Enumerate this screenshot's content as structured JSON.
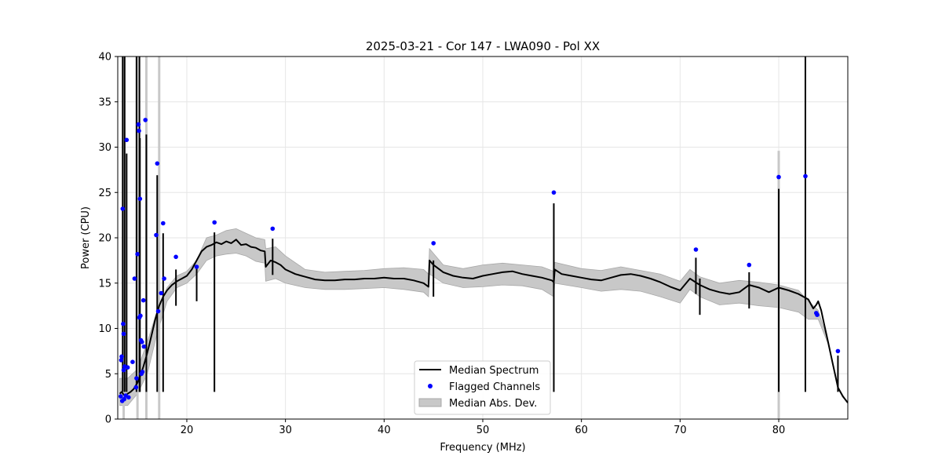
{
  "chart_data": {
    "type": "line",
    "title": "2025-03-21 - Cor 147 - LWA090 - Pol XX",
    "xlabel": "Frequency (MHz)",
    "ylabel": "Power (CPU)",
    "xlim": [
      13.0,
      87.0
    ],
    "ylim": [
      0,
      40
    ],
    "x_ticks": [
      20,
      30,
      40,
      50,
      60,
      70,
      80
    ],
    "x_tick_labels": [
      "20",
      "30",
      "40",
      "50",
      "60",
      "70",
      "80"
    ],
    "y_ticks": [
      0,
      5,
      10,
      15,
      20,
      25,
      30,
      35,
      40
    ],
    "y_tick_labels": [
      "0",
      "5",
      "10",
      "15",
      "20",
      "25",
      "30",
      "35",
      "40"
    ],
    "grid": true,
    "legend_position": "bottom-center",
    "colors": {
      "median": "#000000",
      "flagged": "#0000ff",
      "mad": "#c8c8c8",
      "mad_edge": "#a8a8a8"
    },
    "legend": [
      {
        "label": "Median Spectrum",
        "style": "line"
      },
      {
        "label": "Flagged Channels",
        "style": "marker"
      },
      {
        "label": "Median Abs. Dev.",
        "style": "patch"
      }
    ],
    "series": [
      {
        "name": "Median Spectrum",
        "x": [
          13.2,
          13.4,
          13.6,
          13.8,
          14.0,
          14.3,
          14.6,
          15.0,
          15.3,
          15.6,
          15.9,
          16.2,
          16.5,
          16.8,
          17.2,
          17.6,
          18.0,
          18.5,
          19.0,
          19.5,
          20.0,
          20.5,
          21.0,
          21.5,
          22.0,
          22.5,
          23.0,
          23.5,
          24.0,
          24.5,
          25.0,
          25.5,
          26.0,
          26.5,
          27.0,
          27.5,
          27.9,
          28.0,
          28.5,
          29.0,
          29.5,
          30.0,
          31.0,
          32.0,
          33.0,
          34.0,
          35.0,
          36.0,
          37.0,
          38.0,
          39.0,
          40.0,
          41.0,
          42.0,
          43.0,
          44.0,
          44.5,
          44.6,
          45.0,
          46.0,
          47.0,
          48.0,
          49.0,
          50.0,
          51.0,
          52.0,
          53.0,
          54.0,
          55.0,
          56.0,
          57.0,
          57.2,
          57.3,
          58.0,
          59.0,
          60.0,
          61.0,
          62.0,
          63.0,
          64.0,
          65.0,
          66.0,
          67.0,
          68.0,
          69.0,
          70.0,
          71.0,
          72.0,
          73.0,
          74.0,
          75.0,
          76.0,
          77.0,
          78.0,
          79.0,
          80.0,
          81.0,
          82.0,
          83.0,
          83.5,
          83.8,
          84.0,
          84.3,
          84.6,
          85.0,
          85.5,
          85.8,
          86.0,
          86.5,
          87.0
        ],
        "y": [
          2.8,
          3.0,
          2.7,
          2.6,
          2.8,
          3.0,
          3.3,
          4.0,
          4.8,
          5.8,
          6.9,
          8.2,
          9.6,
          11.0,
          12.5,
          13.5,
          14.2,
          14.8,
          15.2,
          15.5,
          15.8,
          16.5,
          17.5,
          18.5,
          19.0,
          19.2,
          19.5,
          19.3,
          19.6,
          19.4,
          19.8,
          19.2,
          19.3,
          19.0,
          18.9,
          18.6,
          18.5,
          16.8,
          17.5,
          17.3,
          17.0,
          16.5,
          16.0,
          15.7,
          15.4,
          15.3,
          15.3,
          15.4,
          15.4,
          15.5,
          15.5,
          15.6,
          15.5,
          15.5,
          15.3,
          15.0,
          14.6,
          17.5,
          17.0,
          16.2,
          15.8,
          15.6,
          15.5,
          15.8,
          16.0,
          16.2,
          16.3,
          16.0,
          15.8,
          15.6,
          15.3,
          15.1,
          16.5,
          16.0,
          15.8,
          15.6,
          15.4,
          15.3,
          15.6,
          15.9,
          16.0,
          15.8,
          15.5,
          15.1,
          14.6,
          14.2,
          15.5,
          14.8,
          14.3,
          14.0,
          13.8,
          14.0,
          14.8,
          14.5,
          14.0,
          14.5,
          14.2,
          13.8,
          13.2,
          12.2,
          12.6,
          13.0,
          12.0,
          10.5,
          8.5,
          6.0,
          4.5,
          3.5,
          2.5,
          1.8
        ]
      },
      {
        "name": "Flagged Channels",
        "points": [
          [
            13.3,
            2.5
          ],
          [
            13.35,
            6.5
          ],
          [
            13.4,
            6.9
          ],
          [
            13.45,
            2.0
          ],
          [
            13.5,
            23.2
          ],
          [
            13.55,
            10.5
          ],
          [
            13.6,
            9.4
          ],
          [
            13.6,
            5.4
          ],
          [
            13.65,
            2.2
          ],
          [
            13.7,
            5.8
          ],
          [
            13.8,
            2.6
          ],
          [
            13.9,
            30.8
          ],
          [
            14.0,
            5.7
          ],
          [
            14.1,
            2.4
          ],
          [
            14.5,
            6.3
          ],
          [
            14.7,
            15.5
          ],
          [
            14.85,
            3.5
          ],
          [
            14.9,
            4.5
          ],
          [
            15.0,
            18.2
          ],
          [
            15.1,
            32.5
          ],
          [
            15.15,
            31.8
          ],
          [
            15.2,
            11.2
          ],
          [
            15.25,
            24.3
          ],
          [
            15.3,
            11.4
          ],
          [
            15.35,
            8.7
          ],
          [
            15.4,
            5.0
          ],
          [
            15.45,
            8.5
          ],
          [
            15.5,
            5.2
          ],
          [
            15.6,
            13.1
          ],
          [
            15.65,
            8.0
          ],
          [
            15.8,
            33.0
          ],
          [
            16.9,
            20.3
          ],
          [
            17.0,
            28.2
          ],
          [
            17.1,
            11.9
          ],
          [
            17.4,
            13.9
          ],
          [
            17.6,
            21.6
          ],
          [
            17.7,
            15.5
          ],
          [
            18.9,
            17.9
          ],
          [
            21.0,
            16.8
          ],
          [
            22.8,
            21.7
          ],
          [
            28.7,
            21.0
          ],
          [
            45.0,
            19.4
          ],
          [
            57.2,
            25.0
          ],
          [
            71.6,
            18.7
          ],
          [
            77.0,
            17.0
          ],
          [
            80.0,
            26.7
          ],
          [
            82.7,
            26.8
          ],
          [
            83.8,
            11.7
          ],
          [
            83.9,
            11.5
          ],
          [
            86.0,
            7.5
          ]
        ]
      },
      {
        "name": "Median Abs. Dev.",
        "x": [
          13.2,
          14.0,
          15.0,
          16.0,
          17.0,
          18.0,
          19.0,
          20.0,
          21.0,
          22.0,
          23.0,
          24.0,
          25.0,
          26.0,
          27.0,
          27.9,
          28.0,
          29.0,
          30.0,
          32.0,
          34.0,
          36.0,
          38.0,
          40.0,
          42.0,
          44.0,
          44.5,
          44.6,
          46.0,
          48.0,
          50.0,
          52.0,
          54.0,
          56.0,
          57.2,
          57.3,
          60.0,
          62.0,
          64.0,
          66.0,
          68.0,
          70.0,
          71.0,
          72.0,
          74.0,
          76.0,
          78.0,
          80.0,
          82.0,
          83.0,
          84.0,
          85.0,
          86.0,
          87.0
        ],
        "upper": [
          4.5,
          4.5,
          5.5,
          8.5,
          12.0,
          14.5,
          15.8,
          16.3,
          17.5,
          20.0,
          20.3,
          20.8,
          21.0,
          20.5,
          20.0,
          19.8,
          18.8,
          19.0,
          18.0,
          16.5,
          16.2,
          16.3,
          16.4,
          16.6,
          16.7,
          16.5,
          16.0,
          18.8,
          17.0,
          16.6,
          17.0,
          17.2,
          17.0,
          16.8,
          16.3,
          17.3,
          16.6,
          16.4,
          16.8,
          16.4,
          16.0,
          15.2,
          16.5,
          15.7,
          15.0,
          15.3,
          15.1,
          14.8,
          14.2,
          13.0,
          12.0,
          8.5,
          3.5,
          1.8
        ],
        "lower": [
          1.5,
          1.5,
          2.8,
          5.0,
          9.5,
          13.0,
          14.5,
          15.0,
          16.0,
          17.5,
          18.0,
          18.2,
          18.3,
          18.0,
          17.4,
          17.2,
          15.2,
          15.5,
          15.0,
          14.5,
          14.3,
          14.3,
          14.4,
          14.5,
          14.3,
          14.0,
          13.5,
          16.0,
          15.0,
          14.5,
          14.6,
          14.8,
          14.7,
          14.3,
          13.5,
          15.0,
          14.5,
          14.1,
          14.3,
          14.1,
          13.5,
          12.8,
          14.3,
          13.5,
          12.6,
          12.8,
          12.5,
          12.3,
          11.8,
          11.0,
          11.0,
          8.3,
          3.5,
          1.8
        ]
      }
    ],
    "spikes": [
      [
        13.5,
        40
      ],
      [
        13.7,
        40
      ],
      [
        13.9,
        29.3
      ],
      [
        14.9,
        40
      ],
      [
        15.2,
        40
      ],
      [
        15.25,
        31
      ],
      [
        15.9,
        31.4
      ],
      [
        17.0,
        26.9
      ],
      [
        17.6,
        20.5
      ],
      [
        18.9,
        16.5
      ],
      [
        21.0,
        17
      ],
      [
        22.8,
        20.6
      ],
      [
        28.7,
        19.9
      ],
      [
        45.0,
        17.5
      ],
      [
        57.2,
        23.8
      ],
      [
        71.6,
        17.8
      ],
      [
        72.0,
        15.5
      ],
      [
        77.0,
        16.2
      ],
      [
        80.0,
        25.4
      ],
      [
        82.7,
        40
      ],
      [
        86.0,
        7.0
      ]
    ],
    "mad_spikes": [
      [
        13.6,
        40
      ],
      [
        15.0,
        40
      ],
      [
        15.9,
        40
      ],
      [
        17.2,
        40
      ],
      [
        80.0,
        29.6
      ]
    ]
  }
}
